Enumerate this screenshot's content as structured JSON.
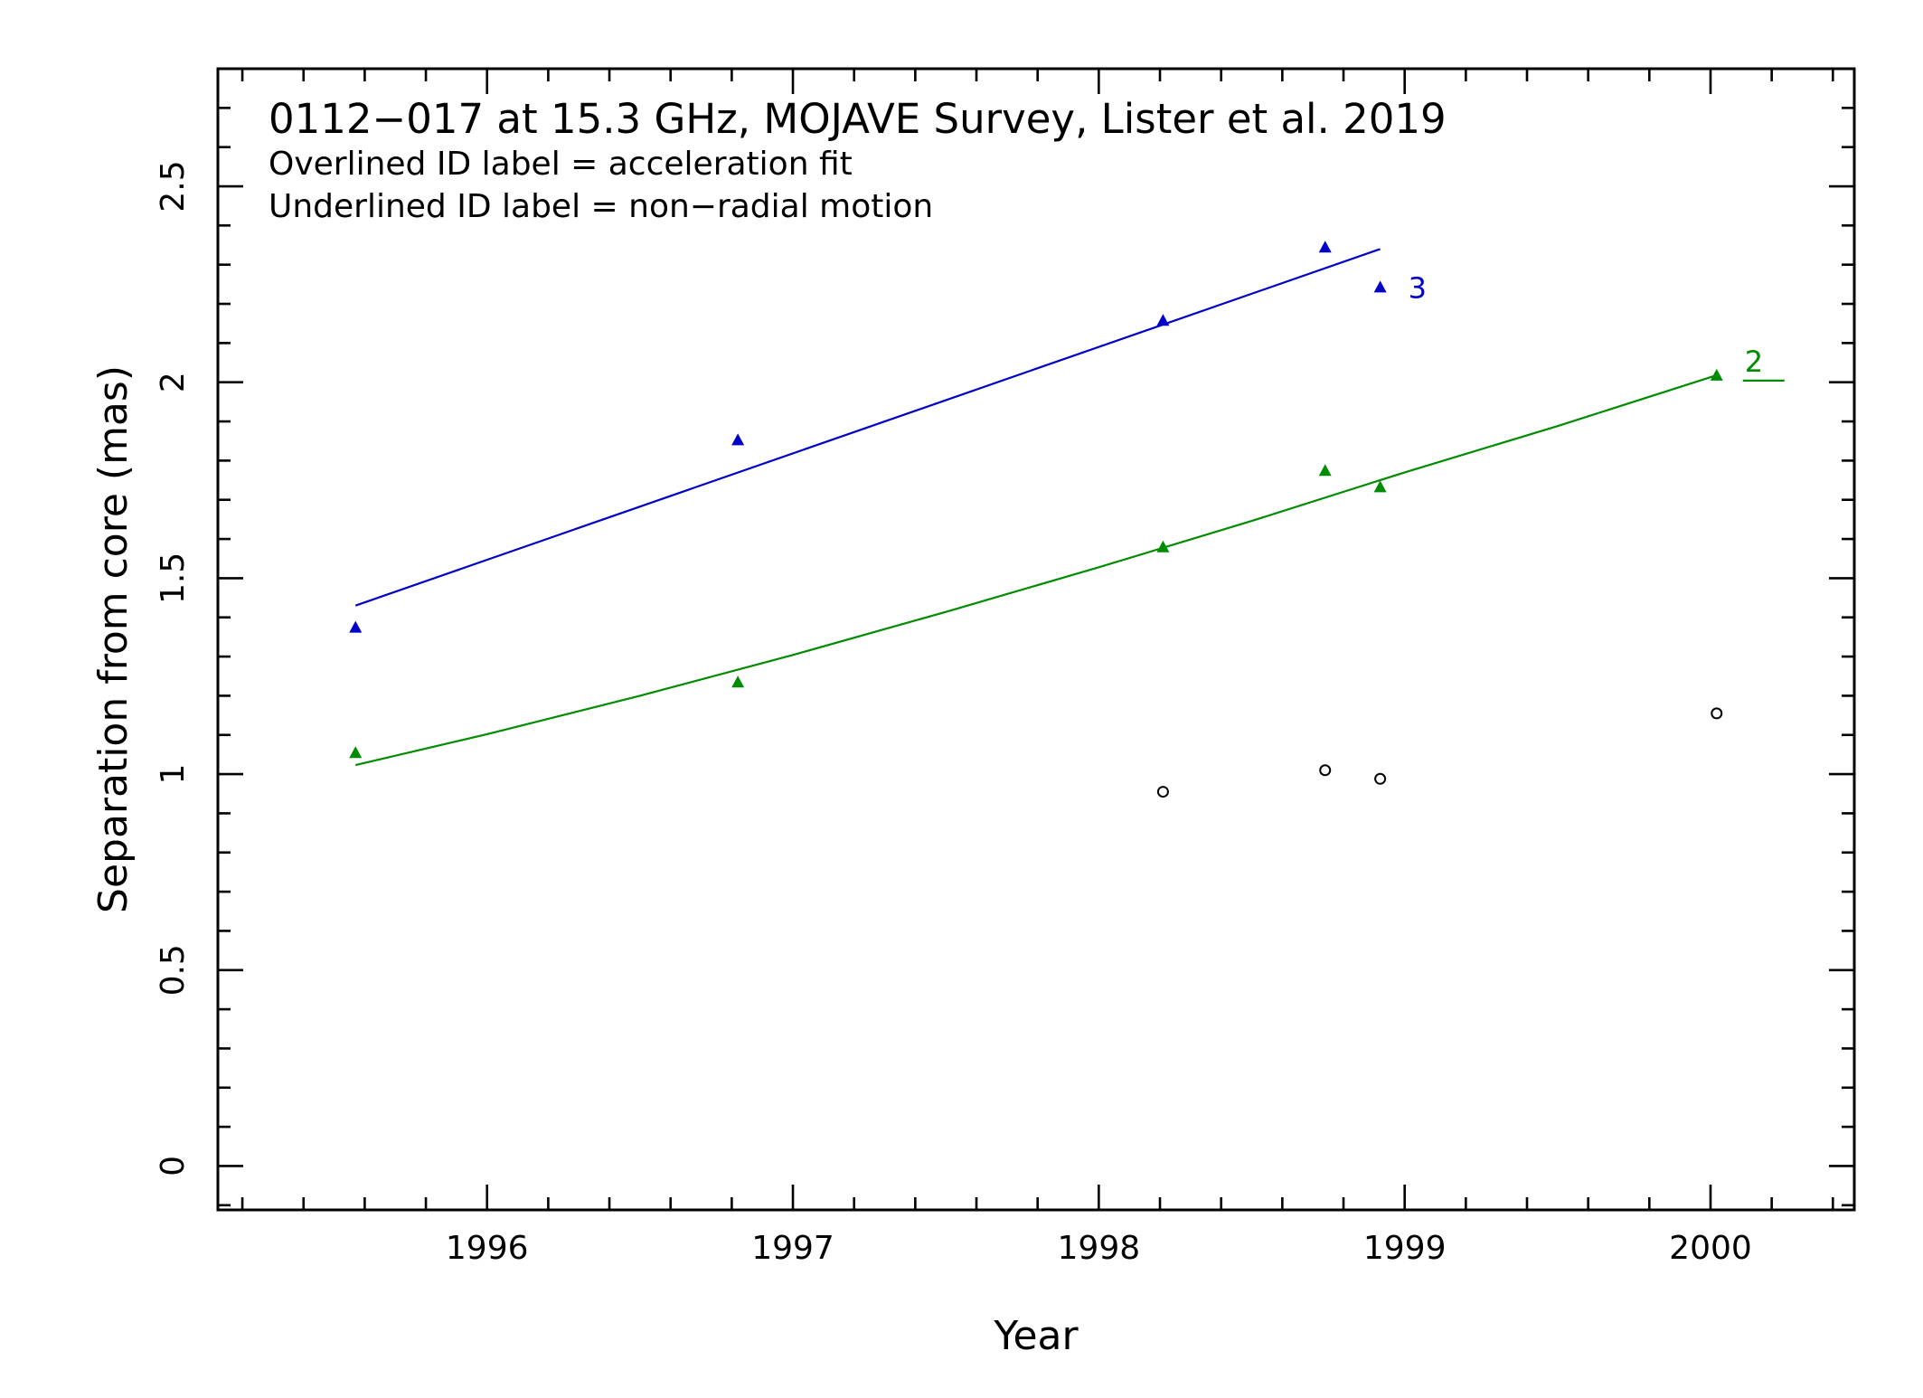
{
  "chart_data": {
    "type": "scatter",
    "xlabel": "Year",
    "ylabel": "Separation from core (mas)",
    "xlim": [
      1995.12,
      2000.47
    ],
    "ylim": [
      -0.112,
      2.8
    ],
    "x_ticks": [
      1996,
      1997,
      1998,
      1999,
      2000
    ],
    "x_tick_labels": [
      "1996",
      "1997",
      "1998",
      "1999",
      "2000"
    ],
    "y_ticks": [
      0,
      0.5,
      1,
      1.5,
      2,
      2.5
    ],
    "y_tick_labels": [
      "0",
      "0.5",
      "1",
      "1.5",
      "2",
      "2.5"
    ],
    "annotations": [
      "0112−017 at 15.3 GHz, MOJAVE Survey, Lister et al. 2019",
      "Overlined ID label = acceleration fit",
      "Underlined ID label = non−radial motion"
    ],
    "series": [
      {
        "label": "3",
        "color": "#0000c8",
        "marker": "triangle",
        "label_style": "plain",
        "x": [
          1995.57,
          1996.82,
          1998.21,
          1998.74,
          1998.92
        ],
        "y": [
          1.375,
          1.853,
          2.158,
          2.345,
          2.243
        ],
        "fit": {
          "x": [
            1995.57,
            1998.92
          ],
          "y": [
            1.43,
            2.34
          ]
        }
      },
      {
        "label": "2",
        "color": "#008c00",
        "marker": "triangle",
        "label_style": "underlined",
        "x": [
          1995.57,
          1996.82,
          1998.21,
          1998.74,
          1998.92,
          2000.02
        ],
        "y": [
          1.055,
          1.235,
          1.58,
          1.775,
          1.733,
          2.018
        ],
        "fit": {
          "x": [
            1995.57,
            1996.0,
            1996.5,
            1997.0,
            1997.5,
            1998.0,
            1998.5,
            1999.0,
            1999.5,
            2000.02
          ],
          "y": [
            1.023,
            1.102,
            1.2,
            1.304,
            1.414,
            1.528,
            1.646,
            1.77,
            1.888,
            2.018
          ]
        }
      },
      {
        "label": "",
        "color": "#000000",
        "marker": "open-circle",
        "x": [
          1998.21,
          1998.74,
          1998.92,
          2000.02
        ],
        "y": [
          0.955,
          1.01,
          0.988,
          1.155
        ]
      }
    ]
  }
}
